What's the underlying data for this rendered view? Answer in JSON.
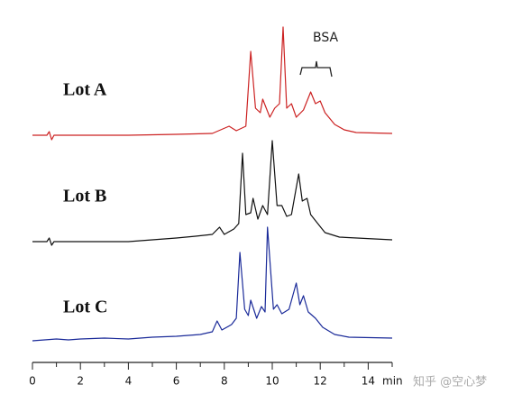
{
  "chart_data": [
    {
      "type": "line",
      "label": "Lot A",
      "color": "#cc2222",
      "xlim": [
        0,
        15
      ],
      "ylim": [
        0,
        140
      ],
      "annotation": "BSA",
      "x": [
        0,
        0.6,
        0.7,
        0.8,
        0.9,
        1.2,
        4,
        6,
        7.5,
        8.2,
        8.5,
        8.9,
        9.1,
        9.3,
        9.5,
        9.6,
        9.9,
        10.1,
        10.3,
        10.45,
        10.6,
        10.8,
        11.0,
        11.3,
        11.6,
        11.8,
        12.0,
        12.2,
        12.6,
        13,
        13.5,
        15
      ],
      "values": [
        0,
        0,
        4,
        -5,
        0,
        0,
        0,
        1,
        2,
        10,
        5,
        10,
        93,
        30,
        25,
        40,
        20,
        30,
        35,
        120,
        30,
        35,
        20,
        28,
        48,
        35,
        38,
        25,
        12,
        6,
        3,
        2
      ]
    },
    {
      "type": "line",
      "label": "Lot B",
      "color": "#111111",
      "xlim": [
        0,
        15
      ],
      "ylim": [
        0,
        140
      ],
      "x": [
        0,
        0.6,
        0.7,
        0.8,
        0.9,
        1.2,
        4,
        5,
        6,
        6.8,
        7.5,
        7.8,
        8.0,
        8.4,
        8.6,
        8.76,
        8.9,
        9.1,
        9.2,
        9.4,
        9.6,
        9.8,
        10.0,
        10.2,
        10.4,
        10.6,
        10.8,
        11.1,
        11.25,
        11.45,
        11.6,
        11.9,
        12.2,
        12.8,
        15
      ],
      "values": [
        0,
        0,
        4,
        -4,
        0,
        0,
        0,
        2,
        4,
        6,
        8,
        16,
        8,
        14,
        20,
        98,
        30,
        32,
        48,
        25,
        40,
        30,
        112,
        40,
        40,
        28,
        30,
        75,
        45,
        48,
        30,
        20,
        10,
        5,
        2
      ]
    },
    {
      "type": "line",
      "label": "Lot C",
      "color": "#1a2a99",
      "xlim": [
        0,
        15
      ],
      "ylim": [
        0,
        140
      ],
      "xticks": [
        0,
        2,
        4,
        6,
        8,
        10,
        12,
        14
      ],
      "minor_xticks": [
        1,
        3,
        5,
        7,
        9,
        11,
        13,
        15
      ],
      "xlabel": "min",
      "x": [
        0,
        0.5,
        1,
        1.5,
        2,
        3,
        4,
        5,
        6,
        7,
        7.5,
        7.7,
        7.9,
        8.3,
        8.5,
        8.65,
        8.85,
        9.0,
        9.1,
        9.35,
        9.55,
        9.7,
        9.8,
        10.05,
        10.2,
        10.4,
        10.7,
        11.0,
        11.15,
        11.3,
        11.5,
        11.8,
        12.1,
        12.6,
        13.2,
        15
      ],
      "values": [
        0,
        1,
        2,
        1,
        2,
        3,
        2,
        4,
        5,
        7,
        10,
        22,
        12,
        18,
        25,
        98,
        35,
        28,
        45,
        25,
        38,
        32,
        126,
        35,
        40,
        30,
        35,
        64,
        40,
        50,
        32,
        25,
        15,
        7,
        4,
        3
      ]
    }
  ],
  "watermark": "知乎 @空心梦"
}
